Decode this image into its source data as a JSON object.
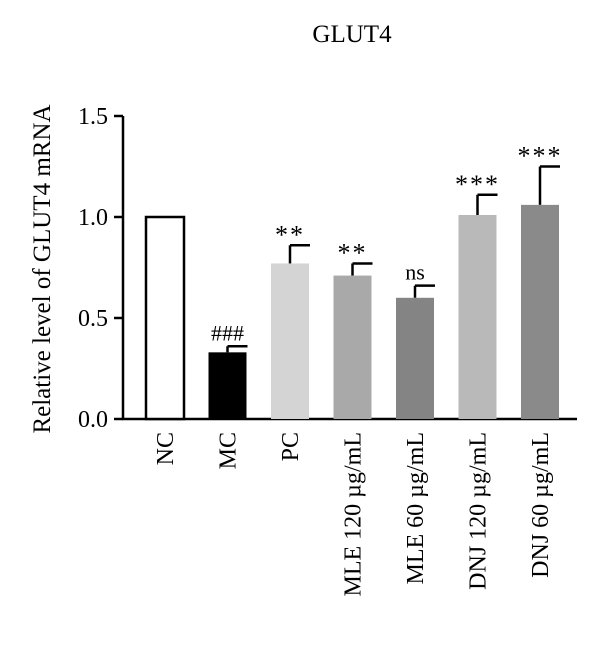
{
  "chart_data": {
    "type": "bar",
    "title": "GLUT4",
    "xlabel": "",
    "ylabel": "Relative level of GLUT4 mRNA",
    "ylim": [
      0,
      1.5
    ],
    "yticks": [
      "0.0",
      "0.5",
      "1.0",
      "1.5"
    ],
    "grid": false,
    "categories": [
      "NC",
      "MC",
      "PC",
      "MLE 120 µg/mL",
      "MLE 60 µg/mL",
      "DNJ 120 µg/mL",
      "DNJ 60 µg/mL"
    ],
    "values": [
      1.0,
      0.33,
      0.77,
      0.71,
      0.6,
      1.01,
      1.06
    ],
    "errors": [
      0,
      0.03,
      0.09,
      0.06,
      0.06,
      0.1,
      0.19
    ],
    "annotations": [
      "",
      "###",
      "**",
      "**",
      "ns",
      "***",
      "***"
    ],
    "bar_colors": [
      "#ffffff",
      "#000000",
      "#d4d4d4",
      "#a9a9a9",
      "#848484",
      "#b9b9b9",
      "#8a8a8a"
    ]
  }
}
